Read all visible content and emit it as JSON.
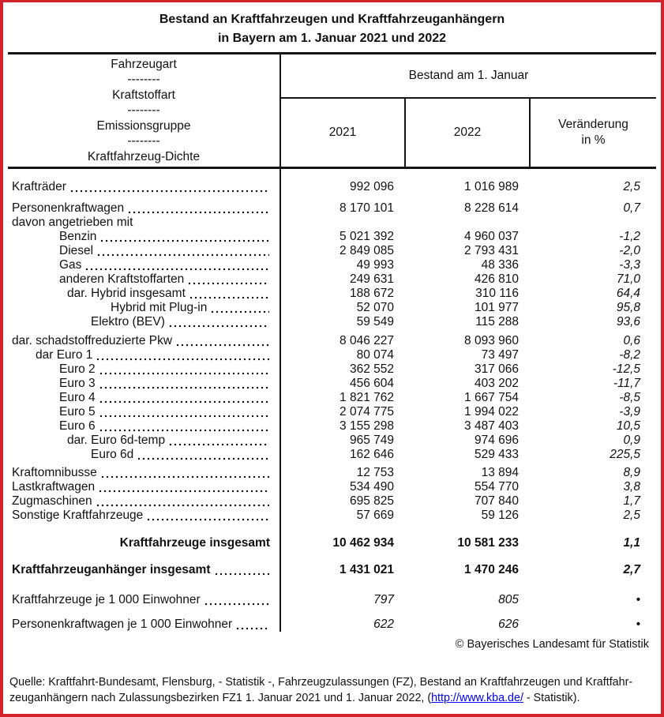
{
  "colors": {
    "page_border": "#d2232a",
    "link": "#0000ee",
    "rule": "#161616"
  },
  "title": {
    "line1": "Bestand an Kraftfahrzeugen und Kraftfahrzeuganhängern",
    "line2": "in Bayern am 1. Januar 2021 und 2022"
  },
  "header": {
    "stub_lines": [
      "Fahrzeugart",
      "--------",
      "Kraftstoffart",
      "--------",
      "Emissionsgruppe",
      "--------",
      "Kraftfahrzeug-Dichte"
    ],
    "group_label": "Bestand am 1. Januar",
    "col_2021": "2021",
    "col_2022": "2022",
    "change_line1": "Veränderung",
    "change_line2": "in %"
  },
  "rows": [
    {
      "label": "Krafträder",
      "v2021": "992 096",
      "v2022": "1 016 989",
      "change": "2,5",
      "indent": 0,
      "leader": true,
      "bold": false,
      "italic_values": false,
      "label_right": false,
      "gap": 14
    },
    {
      "label": "Personenkraftwagen",
      "v2021": "8 170 101",
      "v2022": "8 228 614",
      "change": "0,7",
      "indent": 0,
      "leader": true,
      "bold": false,
      "italic_values": false,
      "label_right": false,
      "gap": 9
    },
    {
      "label": "davon angetrieben mit",
      "v2021": "",
      "v2022": "",
      "change": "",
      "indent": 0,
      "leader": false,
      "bold": false,
      "italic_values": false,
      "label_right": false,
      "gap": 0
    },
    {
      "label": "Benzin",
      "v2021": "5 021 392",
      "v2022": "4 960 037",
      "change": "-1,2",
      "indent": 2,
      "leader": true,
      "bold": false,
      "italic_values": false,
      "label_right": false,
      "gap": 0
    },
    {
      "label": "Diesel",
      "v2021": "2 849 085",
      "v2022": "2 793 431",
      "change": "-2,0",
      "indent": 2,
      "leader": true,
      "bold": false,
      "italic_values": false,
      "label_right": false,
      "gap": 0
    },
    {
      "label": "Gas",
      "v2021": "49 993",
      "v2022": "48 336",
      "change": "-3,3",
      "indent": 2,
      "leader": true,
      "bold": false,
      "italic_values": false,
      "label_right": false,
      "gap": 0
    },
    {
      "label": "anderen Kraftstoffarten",
      "v2021": "249 631",
      "v2022": "426 810",
      "change": "71,0",
      "indent": 2,
      "leader": true,
      "bold": false,
      "italic_values": false,
      "label_right": false,
      "gap": 0
    },
    {
      "label": "dar. Hybrid insgesamt",
      "v2021": "188 672",
      "v2022": "310 116",
      "change": "64,4",
      "indent": 3,
      "leader": true,
      "bold": false,
      "italic_values": false,
      "label_right": false,
      "gap": 0
    },
    {
      "label": "Hybrid mit Plug-in",
      "v2021": "52 070",
      "v2022": "101 977",
      "change": "95,8",
      "indent": 5,
      "leader": true,
      "bold": false,
      "italic_values": false,
      "label_right": false,
      "gap": 0
    },
    {
      "label": "Elektro (BEV)",
      "v2021": "59 549",
      "v2022": "115 288",
      "change": "93,6",
      "indent": 4,
      "leader": true,
      "bold": false,
      "italic_values": false,
      "label_right": false,
      "gap": 0
    },
    {
      "label": "dar. schadstoffreduzierte Pkw",
      "v2021": "8 046 227",
      "v2022": "8 093 960",
      "change": "0,6",
      "indent": 0,
      "leader": true,
      "bold": false,
      "italic_values": false,
      "label_right": false,
      "gap": 6
    },
    {
      "label": "dar Euro 1",
      "v2021": "80 074",
      "v2022": "73 497",
      "change": "-8,2",
      "indent": 1,
      "leader": true,
      "bold": false,
      "italic_values": false,
      "label_right": false,
      "gap": 0
    },
    {
      "label": "Euro 2",
      "v2021": "362 552",
      "v2022": "317 066",
      "change": "-12,5",
      "indent": 2,
      "leader": true,
      "bold": false,
      "italic_values": false,
      "label_right": false,
      "gap": 0
    },
    {
      "label": "Euro 3",
      "v2021": "456 604",
      "v2022": "403 202",
      "change": "-11,7",
      "indent": 2,
      "leader": true,
      "bold": false,
      "italic_values": false,
      "label_right": false,
      "gap": 0
    },
    {
      "label": "Euro 4",
      "v2021": "1 821 762",
      "v2022": "1 667 754",
      "change": "-8,5",
      "indent": 2,
      "leader": true,
      "bold": false,
      "italic_values": false,
      "label_right": false,
      "gap": 0
    },
    {
      "label": "Euro 5",
      "v2021": "2 074 775",
      "v2022": "1 994 022",
      "change": "-3,9",
      "indent": 2,
      "leader": true,
      "bold": false,
      "italic_values": false,
      "label_right": false,
      "gap": 0
    },
    {
      "label": "Euro 6",
      "v2021": "3 155 298",
      "v2022": "3 487 403",
      "change": "10,5",
      "indent": 2,
      "leader": true,
      "bold": false,
      "italic_values": false,
      "label_right": false,
      "gap": 0
    },
    {
      "label": "dar. Euro 6d-temp",
      "v2021": "965 749",
      "v2022": "974 696",
      "change": "0,9",
      "indent": 3,
      "leader": true,
      "bold": false,
      "italic_values": false,
      "label_right": false,
      "gap": 0
    },
    {
      "label": "Euro 6d",
      "v2021": "162 646",
      "v2022": "529 433",
      "change": "225,5",
      "indent": 4,
      "leader": true,
      "bold": false,
      "italic_values": false,
      "label_right": false,
      "gap": 0
    },
    {
      "label": "Kraftomnibusse",
      "v2021": "12 753",
      "v2022": "13 894",
      "change": "8,9",
      "indent": 0,
      "leader": true,
      "bold": false,
      "italic_values": false,
      "label_right": false,
      "gap": 5
    },
    {
      "label": "Lastkraftwagen",
      "v2021": "534 490",
      "v2022": "554 770",
      "change": "3,8",
      "indent": 0,
      "leader": true,
      "bold": false,
      "italic_values": false,
      "label_right": false,
      "gap": 0
    },
    {
      "label": "Zugmaschinen",
      "v2021": "695 825",
      "v2022": "707 840",
      "change": "1,7",
      "indent": 0,
      "leader": true,
      "bold": false,
      "italic_values": false,
      "label_right": false,
      "gap": 0
    },
    {
      "label": "Sonstige Kraftfahrzeuge",
      "v2021": "57 669",
      "v2022": "59 126",
      "change": "2,5",
      "indent": 0,
      "leader": true,
      "bold": false,
      "italic_values": false,
      "label_right": false,
      "gap": 0
    },
    {
      "label": "Kraftfahrzeuge insgesamt",
      "v2021": "10 462 934",
      "v2022": "10 581 233",
      "change": "1,1",
      "indent": 0,
      "leader": false,
      "bold": true,
      "italic_values": false,
      "label_right": true,
      "gap": 17
    },
    {
      "label": "Kraftfahrzeuganhänger insgesamt",
      "v2021": "1 431 021",
      "v2022": "1 470 246",
      "change": "2,7",
      "indent": 0,
      "leader": true,
      "bold": true,
      "italic_values": false,
      "label_right": false,
      "gap": 16
    },
    {
      "label": "Kraftfahrzeuge je 1 000 Einwohner",
      "v2021": "797",
      "v2022": "805",
      "change": "•",
      "indent": 0,
      "leader": true,
      "bold": false,
      "italic_values": true,
      "label_right": false,
      "gap": 20
    },
    {
      "label": "Personenkraftwagen je 1 000 Einwohner",
      "v2021": "622",
      "v2022": "626",
      "change": "•",
      "indent": 0,
      "leader": true,
      "bold": false,
      "italic_values": true,
      "label_right": false,
      "gap": 13
    }
  ],
  "copyright": "© Bayerisches Landesamt für Statistik",
  "source": {
    "line1": "Quelle: Kraftfahrt-Bundesamt, Flensburg, - Statistik -, Fahrzeugzulassungen (FZ), Bestand an Kraftfahrzeugen und Kraftfahr-",
    "line2_pre": "zeuganhängern nach Zulassungsbezirken FZ1 1. Januar 2021 und 1. Januar 2022, (",
    "link": "http://www.kba.de/",
    "line2_post": " - Statistik)."
  }
}
